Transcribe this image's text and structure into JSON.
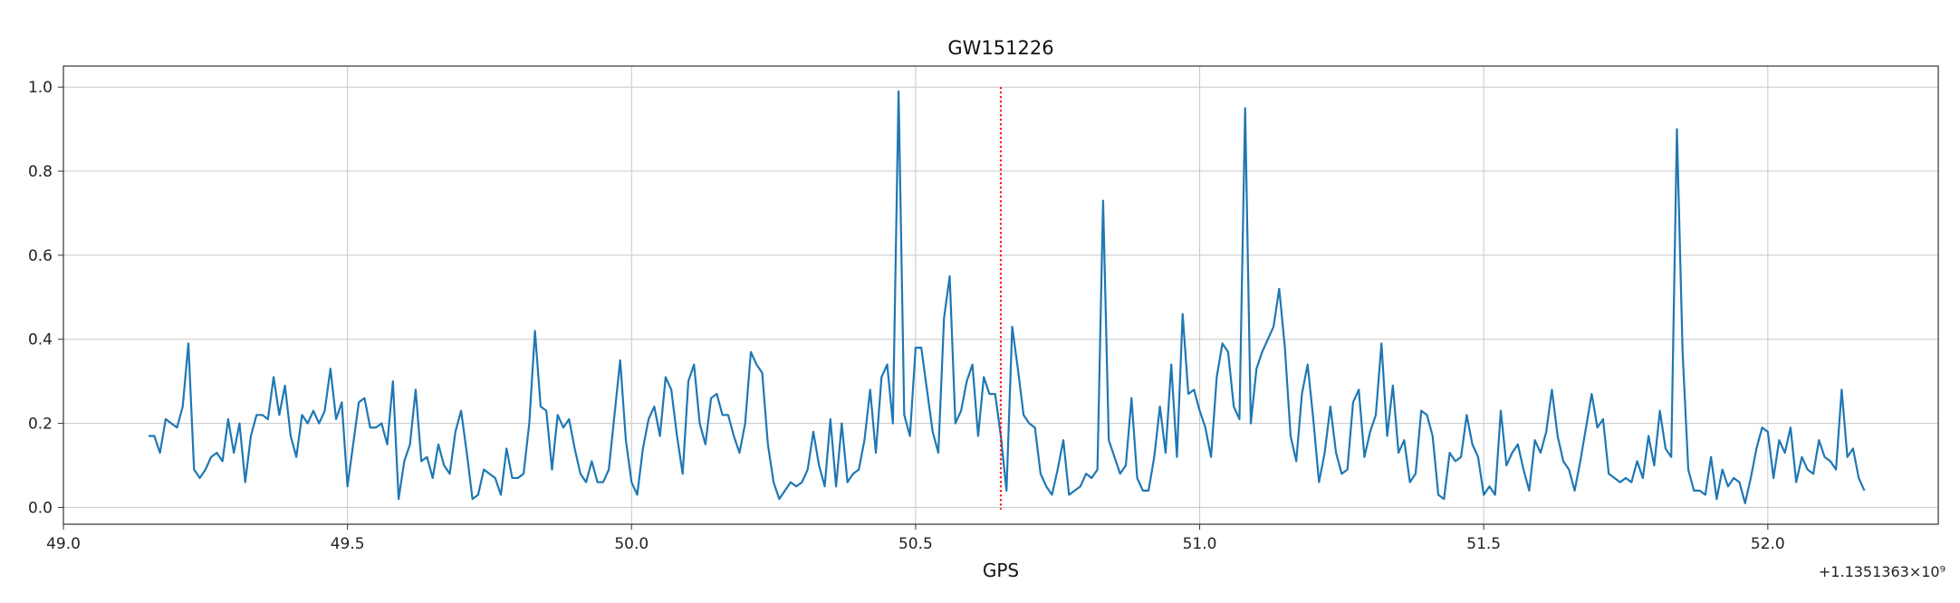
{
  "chart_data": {
    "type": "line",
    "title": "GW151226",
    "xlabel": "GPS",
    "ylabel": "",
    "x_offset_label": "+1.1351363×10⁹",
    "xlim": [
      49.0,
      52.3
    ],
    "ylim": [
      -0.04,
      1.05
    ],
    "x_ticks": [
      49.0,
      49.5,
      50.0,
      50.5,
      51.0,
      51.5,
      52.0
    ],
    "x_tick_labels": [
      "49.0",
      "49.5",
      "50.0",
      "50.5",
      "51.0",
      "51.5",
      "52.0"
    ],
    "y_ticks": [
      0.0,
      0.2,
      0.4,
      0.6,
      0.8,
      1.0
    ],
    "y_tick_labels": [
      "0.0",
      "0.2",
      "0.4",
      "0.6",
      "0.8",
      "1.0"
    ],
    "grid": true,
    "series": [
      {
        "color": "#1f77b4",
        "x_start": 49.15,
        "x_step": 0.01,
        "values": [
          0.17,
          0.17,
          0.13,
          0.21,
          0.2,
          0.19,
          0.24,
          0.39,
          0.09,
          0.07,
          0.09,
          0.12,
          0.13,
          0.11,
          0.21,
          0.13,
          0.2,
          0.06,
          0.17,
          0.22,
          0.22,
          0.21,
          0.31,
          0.22,
          0.29,
          0.17,
          0.12,
          0.22,
          0.2,
          0.23,
          0.2,
          0.23,
          0.33,
          0.21,
          0.25,
          0.05,
          0.15,
          0.25,
          0.26,
          0.19,
          0.19,
          0.2,
          0.15,
          0.3,
          0.02,
          0.11,
          0.15,
          0.28,
          0.11,
          0.12,
          0.07,
          0.15,
          0.1,
          0.08,
          0.18,
          0.23,
          0.13,
          0.02,
          0.03,
          0.09,
          0.08,
          0.07,
          0.03,
          0.14,
          0.07,
          0.07,
          0.08,
          0.2,
          0.42,
          0.24,
          0.23,
          0.09,
          0.22,
          0.19,
          0.21,
          0.14,
          0.08,
          0.06,
          0.11,
          0.06,
          0.06,
          0.09,
          0.22,
          0.35,
          0.16,
          0.06,
          0.03,
          0.14,
          0.21,
          0.24,
          0.17,
          0.31,
          0.28,
          0.17,
          0.08,
          0.3,
          0.34,
          0.2,
          0.15,
          0.26,
          0.27,
          0.22,
          0.22,
          0.17,
          0.13,
          0.2,
          0.37,
          0.34,
          0.32,
          0.15,
          0.06,
          0.02,
          0.04,
          0.06,
          0.05,
          0.06,
          0.09,
          0.18,
          0.1,
          0.05,
          0.21,
          0.05,
          0.2,
          0.06,
          0.08,
          0.09,
          0.16,
          0.28,
          0.13,
          0.31,
          0.34,
          0.2,
          0.99,
          0.22,
          0.17,
          0.38,
          0.38,
          0.28,
          0.18,
          0.13,
          0.45,
          0.55,
          0.2,
          0.23,
          0.3,
          0.34,
          0.17,
          0.31,
          0.27,
          0.27,
          0.17,
          0.04,
          0.43,
          0.33,
          0.22,
          0.2,
          0.19,
          0.08,
          0.05,
          0.03,
          0.09,
          0.16,
          0.03,
          0.04,
          0.05,
          0.08,
          0.07,
          0.09,
          0.73,
          0.16,
          0.12,
          0.08,
          0.1,
          0.26,
          0.07,
          0.04,
          0.04,
          0.12,
          0.24,
          0.13,
          0.34,
          0.12,
          0.46,
          0.27,
          0.28,
          0.23,
          0.19,
          0.12,
          0.31,
          0.39,
          0.37,
          0.24,
          0.21,
          0.95,
          0.2,
          0.33,
          0.37,
          0.4,
          0.43,
          0.52,
          0.38,
          0.17,
          0.11,
          0.27,
          0.34,
          0.21,
          0.06,
          0.13,
          0.24,
          0.13,
          0.08,
          0.09,
          0.25,
          0.28,
          0.12,
          0.18,
          0.22,
          0.39,
          0.17,
          0.29,
          0.13,
          0.16,
          0.06,
          0.08,
          0.23,
          0.22,
          0.17,
          0.03,
          0.02,
          0.13,
          0.11,
          0.12,
          0.22,
          0.15,
          0.12,
          0.03,
          0.05,
          0.03,
          0.23,
          0.1,
          0.13,
          0.15,
          0.09,
          0.04,
          0.16,
          0.13,
          0.18,
          0.28,
          0.17,
          0.11,
          0.09,
          0.04,
          0.11,
          0.19,
          0.27,
          0.19,
          0.21,
          0.08,
          0.07,
          0.06,
          0.07,
          0.06,
          0.11,
          0.07,
          0.17,
          0.1,
          0.23,
          0.14,
          0.12,
          0.9,
          0.37,
          0.09,
          0.04,
          0.04,
          0.03,
          0.12,
          0.02,
          0.09,
          0.05,
          0.07,
          0.06,
          0.01,
          0.07,
          0.14,
          0.19,
          0.18,
          0.07,
          0.16,
          0.13,
          0.19,
          0.06,
          0.12,
          0.09,
          0.08,
          0.16,
          0.12,
          0.11,
          0.09,
          0.28,
          0.12,
          0.14,
          0.07,
          0.04
        ]
      }
    ],
    "vline": {
      "x": 50.65,
      "color": "#ff0000",
      "style": "dotted",
      "y_range": [
        -0.005,
        1.0
      ]
    }
  }
}
